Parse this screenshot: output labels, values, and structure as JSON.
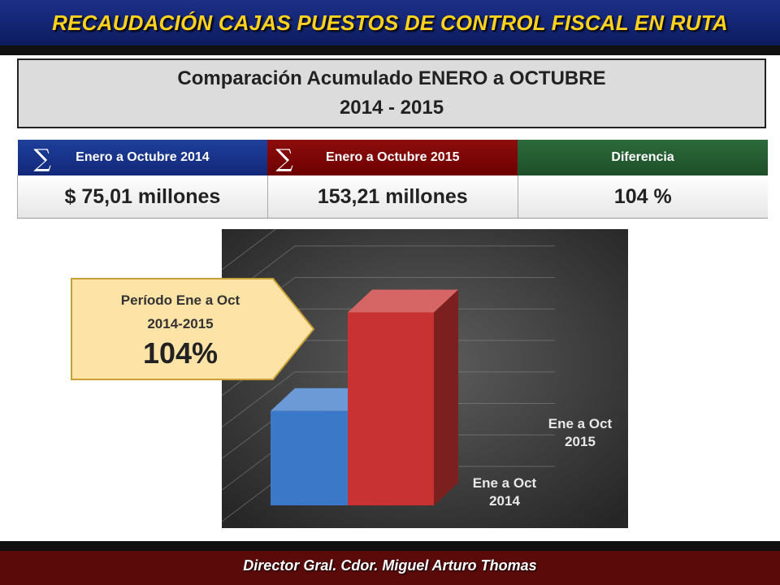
{
  "header": {
    "title": "RECAUDACIÓN CAJAS PUESTOS DE CONTROL FISCAL EN RUTA"
  },
  "comparison": {
    "line1": "Comparación Acumulado ENERO a OCTUBRE",
    "line2": "2014 - 2015"
  },
  "table": {
    "headers": [
      "Enero a Octubre 2014",
      "Enero a Octubre 2015",
      "Diferencia"
    ],
    "values": [
      "$ 75,01 millones",
      "153,21 millones",
      "104 %"
    ]
  },
  "callout": {
    "line1": "Período Ene a Oct",
    "line2": "2014-2015",
    "value": "104%"
  },
  "chart_data": {
    "type": "bar",
    "categories": [
      "Ene a Oct\n2014",
      "Ene a Oct\n2015"
    ],
    "values": [
      75.01,
      153.21
    ],
    "colors": [
      "#3b78c8",
      "#c83232"
    ],
    "title": "",
    "xlabel": "",
    "ylabel": "",
    "ylim": [
      0,
      200
    ],
    "grid": true
  },
  "footer": {
    "text": "Director Gral.  Cdor. Miguel Arturo Thomas"
  }
}
